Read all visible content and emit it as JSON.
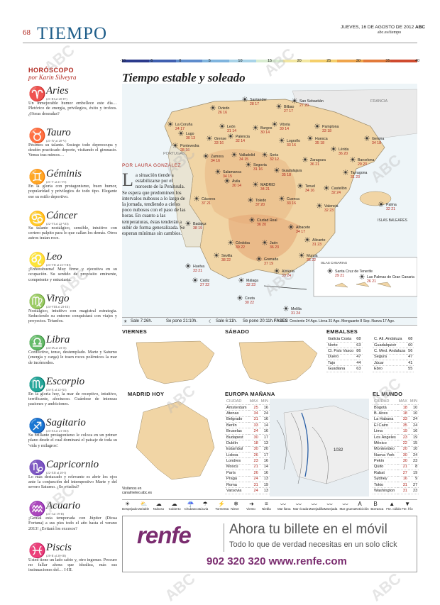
{
  "header": {
    "page": "68",
    "section": "TIEMPO",
    "date": "JUEVES, 16 DE AGOSTO DE 2012",
    "brand": "ABC",
    "url": "abc.es/tiempo"
  },
  "horoscope": {
    "heading": "HORÓSCOPO",
    "byline": "por Karin Silveyra",
    "signs": [
      {
        "name": "Aries",
        "symbol": "♈",
        "dates": "(21-III al 20-IV)",
        "text": "Un inmejorable humor embellece este día… Pletórico de energía, privilegios, éxito y trofeos. ¿Horas deseadas?"
      },
      {
        "name": "Tauro",
        "symbol": "♉",
        "dates": "(21-IV al 20-V)",
        "text": "Pésimos su talante. Sosiego todo depreocupa y desdén practicado deporte, visitando el gimnasio. Venus tras mimos…"
      },
      {
        "name": "Géminis",
        "symbol": "♊",
        "dates": "(21-V al 21-VI)",
        "text": "En la gloria con protagonismo, buen humor, popularidad y privilegios de todo tipo. Elegante ese su estilo deportivo."
      },
      {
        "name": "Cáncer",
        "symbol": "♋",
        "dates": "(22-VI al 22-VII)",
        "text": "Su talante nostálgico, sensible, intuitivo con certero palpito para lo que callan los demás. Otros astros tratan roce."
      },
      {
        "name": "Leo",
        "symbol": "♌",
        "dates": "(23-VII al 23-VIII)",
        "text": "¡Enhorabuena! Muy firme y ejecutiva en su ocupación. Su sentido de propósito eminente, competente y entusiasta."
      },
      {
        "name": "Virgo",
        "symbol": "♍",
        "dates": "(24-VIII al 23-IX)",
        "text": "Nostálgico, intuitivo con magistral estrategia. Seduciendo su entorno conquistará con viajes y proyectos. Triunfos."
      },
      {
        "name": "Libra",
        "symbol": "♎",
        "dates": "(24-IX al 23-X)",
        "text": "Conflictivo, tenso, destemplado. Marte y Saturno (energía y carga) le traen roces polémicos la mar de incómodos."
      },
      {
        "name": "Escorpio",
        "symbol": "♏",
        "dates": "(24-X al 22-XI)",
        "text": "En la gloria hoy, la mar de receptivo, intuitivo, terrificante, afectuoso. Guárdese de intensas pasiones y ambiciones."
      },
      {
        "name": "Sagitario",
        "symbol": "♐",
        "dates": "(23-XI al 21-XII)",
        "text": "Su brillante protagonismo le coloca en un primer plano desde el cual dominará el paisaje de toda su 'vida y milagros'."
      },
      {
        "name": "Capricornio",
        "symbol": "♑",
        "dates": "(22-XII al 20-I)",
        "text": "Lo más destacado y relevante es abrir los ojos ante la conjunción del intempestivo Marte y del severo Saturno. ¿Se evadirá?"
      },
      {
        "name": "Acuario",
        "symbol": "♒",
        "dates": "(21-I al 19-II)",
        "text": "¡Genial esta temporada con Júpiter (Diosa Fortuna) a sus pies todo el año hasta el verano 2013! ¿Evitará los excesos?"
      },
      {
        "name": "Piscis",
        "symbol": "♓",
        "dates": "(20-II al 20-III)",
        "text": "Usted tiene un lado sabio y, otro ingenuo. Procure no fallar ahora que idealiza, más sus insinuaciones del… I-III."
      }
    ]
  },
  "scale": {
    "labels": [
      "-10",
      "-5",
      "0",
      "5",
      "10",
      "15",
      "20",
      "25",
      "30",
      "35",
      "40"
    ],
    "colors": [
      "#2b3a8c",
      "#3f5fb0",
      "#5e8ccc",
      "#7fb4de",
      "#a8d3e8",
      "#d8ecd0",
      "#f3e7a0",
      "#f5cf6a",
      "#efa44a",
      "#e27a3a",
      "#cf4a2e"
    ]
  },
  "map": {
    "title": "Tiempo estable y soleado",
    "byline": "POR LAURA GONZÁLEZ",
    "story_drop": "L",
    "story": "a situación tiende a estabilizarse por el noroeste de la Península. Se espera que predominen los intervalos nubosos a lo largo de la jornada, tendiendo a cielos poco nubosos con el paso de las horas. En cuanto a las temperaturas, éstas tenderán a subir de forma generalizada. Se esperan mínimas sin cambios.",
    "labels": {
      "france": "FRANCIA",
      "portugal": "PORTUGAL",
      "baleares": "ISLAS BALEARES",
      "canarias": "ISLAS CANARIAS"
    },
    "cities": [
      {
        "n": "La Coruña",
        "t": "24 17"
      },
      {
        "n": "Oviedo",
        "t": "26 16"
      },
      {
        "n": "Santander",
        "t": "28 17"
      },
      {
        "n": "Bilbao",
        "t": "27 17"
      },
      {
        "n": "San Sebastián",
        "t": "27 20"
      },
      {
        "n": "Pamplona",
        "t": "33 18"
      },
      {
        "n": "Lugo",
        "t": "30 13"
      },
      {
        "n": "Pontevedra",
        "t": "28 16"
      },
      {
        "n": "Orense",
        "t": "33 16"
      },
      {
        "n": "León",
        "t": "31 14"
      },
      {
        "n": "Palencia",
        "t": "32 14"
      },
      {
        "n": "Burgos",
        "t": "30 14"
      },
      {
        "n": "Vitoria",
        "t": "30 14"
      },
      {
        "n": "Logroño",
        "t": "33 16"
      },
      {
        "n": "Huesca",
        "t": "35 18"
      },
      {
        "n": "Lérida",
        "t": "36 20"
      },
      {
        "n": "Gerona",
        "t": "34 18"
      },
      {
        "n": "Barcelona",
        "t": "29 23"
      },
      {
        "n": "Zamora",
        "t": "34 16"
      },
      {
        "n": "Valladolid",
        "t": "34 15"
      },
      {
        "n": "Soria",
        "t": "32 12"
      },
      {
        "n": "Zaragoza",
        "t": "36 21"
      },
      {
        "n": "Tarragona",
        "t": "31 23"
      },
      {
        "n": "Salamanca",
        "t": "34 15"
      },
      {
        "n": "Segovia",
        "t": "31 16"
      },
      {
        "n": "Guadalajara",
        "t": "35 18"
      },
      {
        "n": "Ávila",
        "t": "30 14"
      },
      {
        "n": "MADRID",
        "t": "34 21"
      },
      {
        "n": "Teruel",
        "t": "34 16"
      },
      {
        "n": "Castellón",
        "t": "32 24"
      },
      {
        "n": "Cáceres",
        "t": "37 21"
      },
      {
        "n": "Toledo",
        "t": "37 20"
      },
      {
        "n": "Cuenca",
        "t": "33 16"
      },
      {
        "n": "Valencia",
        "t": "32 23"
      },
      {
        "n": "Palma",
        "t": "32 21"
      },
      {
        "n": "Badajoz",
        "t": "38 19"
      },
      {
        "n": "Ciudad Real",
        "t": "36 20"
      },
      {
        "n": "Albacete",
        "t": "34 17"
      },
      {
        "n": "Alicante",
        "t": "31 23"
      },
      {
        "n": "Córdoba",
        "t": "39 22"
      },
      {
        "n": "Jaén",
        "t": "36 23"
      },
      {
        "n": "Murcia",
        "t": "35 22"
      },
      {
        "n": "Sevilla",
        "t": "38 22"
      },
      {
        "n": "Granada",
        "t": "37 19"
      },
      {
        "n": "Huelva",
        "t": "33 21"
      },
      {
        "n": "Cádiz",
        "t": "27 22"
      },
      {
        "n": "Málaga",
        "t": "32 23"
      },
      {
        "n": "Almería",
        "t": "33 24"
      },
      {
        "n": "Ceuta",
        "t": "30 22"
      },
      {
        "n": "Melilla",
        "t": "31 24"
      },
      {
        "n": "Santa Cruz de Tenerife",
        "t": "29 21"
      },
      {
        "n": "Las Palmas de Gran Canaria",
        "t": "26 21"
      }
    ]
  },
  "sunbar": {
    "sun_rise": "Sale 7:26h.",
    "sun_set": "Se pone 21:10h.",
    "moon_rise": "Sale 6:11h.",
    "moon_set": "Se pone 20:11h.",
    "phases_label": "FASES",
    "phases": "Creciente 24 Ago. Llena 31 Ago. Menguante 8 Sep. Nueva 17 Ago."
  },
  "viernes": {
    "title": "VIERNES"
  },
  "sabado": {
    "title": "SÁBADO"
  },
  "embalses": {
    "title": "EMBALSES",
    "rows": [
      [
        "Galicia Costa",
        "68"
      ],
      [
        "Norte",
        "63"
      ],
      [
        "Cl. País Vasco",
        "86"
      ],
      [
        "Duero",
        "47"
      ],
      [
        "Tajo",
        "44"
      ],
      [
        "Guadiana",
        "63"
      ]
    ],
    "rows2": [
      [
        "C. Atl. Andaluza",
        "68"
      ],
      [
        "Guadalquivir",
        "60"
      ],
      [
        "C. Med. Andaluza",
        "56"
      ],
      [
        "Segura",
        "47"
      ],
      [
        "Júcar",
        "41"
      ],
      [
        "Ebro",
        "55"
      ]
    ],
    "pct": "%"
  },
  "madrid": {
    "title": "MADRID HOY",
    "note": "Visítenos en canalmeteo.abc.es"
  },
  "europa": {
    "title": "EUROPA MAÑANA",
    "hdr": [
      "CIUDAD",
      "MAX",
      "MIN"
    ],
    "rows": [
      [
        "Ámsterdam",
        "25",
        "16"
      ],
      [
        "Atenas",
        "34",
        "24"
      ],
      [
        "Belgrado",
        "31",
        "16"
      ],
      [
        "Berlín",
        "33",
        "14"
      ],
      [
        "Bruselas",
        "24",
        "16"
      ],
      [
        "Budapest",
        "30",
        "17"
      ],
      [
        "Dublín",
        "18",
        "13"
      ],
      [
        "Estambul",
        "30",
        "20"
      ],
      [
        "Lisboa",
        "26",
        "17"
      ],
      [
        "Londres",
        "23",
        "16"
      ],
      [
        "Moscú",
        "21",
        "14"
      ],
      [
        "París",
        "26",
        "16"
      ],
      [
        "Praga",
        "24",
        "13"
      ],
      [
        "Roma",
        "31",
        "19"
      ],
      [
        "Varsovia",
        "24",
        "13"
      ]
    ],
    "pressure": "1032"
  },
  "mundo": {
    "title": "EL MUNDO",
    "hdr": [
      "CIUDAD",
      "MAX",
      "MIN"
    ],
    "rows": [
      [
        "Bogotá",
        "18",
        "10"
      ],
      [
        "B. Aires",
        "18",
        "10"
      ],
      [
        "La Habana",
        "33",
        "24"
      ],
      [
        "El Cairo",
        "35",
        "24"
      ],
      [
        "Lima",
        "19",
        "16"
      ],
      [
        "Los Ángeles",
        "23",
        "19"
      ],
      [
        "México",
        "22",
        "15"
      ],
      [
        "Montevideo",
        "20",
        "10"
      ],
      [
        "Nueva York",
        "30",
        "24"
      ],
      [
        "Pekín",
        "30",
        "23"
      ],
      [
        "Quito",
        "21",
        "8"
      ],
      [
        "Rabat",
        "27",
        "19"
      ],
      [
        "Sydney",
        "16",
        "9"
      ],
      [
        "Tokio",
        "31",
        "27"
      ],
      [
        "Washington",
        "31",
        "23"
      ]
    ]
  },
  "legend": [
    "Despejado",
    "Variable",
    "Nuboso",
    "Cubierto",
    "Chubascos",
    "Lluvia",
    "Tormenta",
    "Nieve",
    "Viento",
    "Niebla",
    "Mar llana",
    "Mar rizada",
    "Marejadilla",
    "Marejada",
    "Mar gruesa",
    "Anticiclón",
    "Borrasca",
    "Fte. cálido",
    "Fte. frío"
  ],
  "ad": {
    "logo": "renfe",
    "line1": "Ahora tu billete en el móvil",
    "line2": "Todo lo que de verdad necesitas en un solo click",
    "phone": "902 320 320 www.renfe.com"
  },
  "watermark": "ABC"
}
